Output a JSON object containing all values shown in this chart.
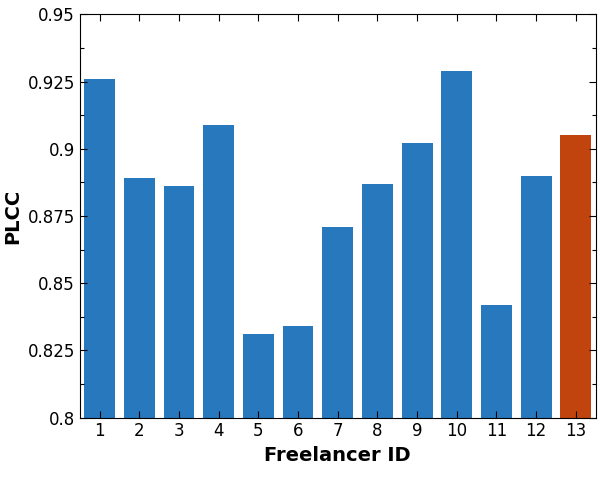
{
  "categories": [
    1,
    2,
    3,
    4,
    5,
    6,
    7,
    8,
    9,
    10,
    11,
    12,
    13
  ],
  "values": [
    0.926,
    0.889,
    0.886,
    0.909,
    0.831,
    0.834,
    0.871,
    0.887,
    0.902,
    0.929,
    0.842,
    0.89,
    0.905
  ],
  "bar_colors": [
    "#2878bd",
    "#2878bd",
    "#2878bd",
    "#2878bd",
    "#2878bd",
    "#2878bd",
    "#2878bd",
    "#2878bd",
    "#2878bd",
    "#2878bd",
    "#2878bd",
    "#2878bd",
    "#c1440e"
  ],
  "title": "",
  "xlabel": "Freelancer ID",
  "ylabel": "PLCC",
  "ylim": [
    0.8,
    0.95
  ],
  "yticks": [
    0.8,
    0.825,
    0.85,
    0.875,
    0.9,
    0.925,
    0.95
  ],
  "background_color": "#ffffff",
  "xlabel_fontsize": 14,
  "ylabel_fontsize": 14,
  "tick_fontsize": 12,
  "bar_width": 0.78
}
